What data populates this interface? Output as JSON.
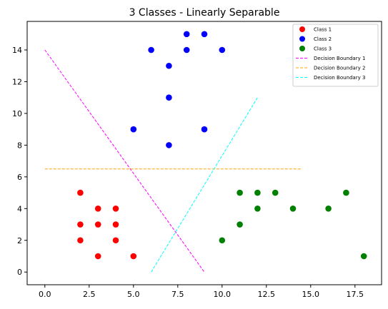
{
  "chart_data": {
    "type": "scatter",
    "title": "3 Classes - Linearly Separable",
    "xlabel": "",
    "ylabel": "",
    "xlim": [
      -1,
      19
    ],
    "ylim": [
      -0.8,
      15.8
    ],
    "xticks": [
      0.0,
      2.5,
      5.0,
      7.5,
      10.0,
      12.5,
      15.0,
      17.5
    ],
    "xtick_labels": [
      "0.0",
      "2.5",
      "5.0",
      "7.5",
      "10.0",
      "12.5",
      "15.0",
      "17.5"
    ],
    "yticks": [
      0,
      2,
      4,
      6,
      8,
      10,
      12,
      14
    ],
    "ytick_labels": [
      "0",
      "2",
      "4",
      "6",
      "8",
      "10",
      "12",
      "14"
    ],
    "grid": false,
    "legend_placement": "top-right",
    "series": [
      {
        "name": "Class 1",
        "kind": "points",
        "color": "#ff0000",
        "x": [
          2,
          2,
          2,
          3,
          3,
          3,
          4,
          4,
          4,
          5
        ],
        "y": [
          5,
          3,
          2,
          4,
          3,
          1,
          4,
          3,
          2,
          1
        ]
      },
      {
        "name": "Class 2",
        "kind": "points",
        "color": "#0000ff",
        "x": [
          5,
          6,
          7,
          7,
          7,
          8,
          8,
          9,
          9,
          10
        ],
        "y": [
          9,
          14,
          13,
          11,
          8,
          15,
          14,
          15,
          9,
          14
        ]
      },
      {
        "name": "Class 3",
        "kind": "points",
        "color": "#008000",
        "x": [
          10,
          11,
          11,
          12,
          12,
          13,
          14,
          16,
          17,
          18
        ],
        "y": [
          2,
          5,
          3,
          5,
          4,
          5,
          4,
          4,
          5,
          1
        ]
      },
      {
        "name": "Decision Boundary 1",
        "kind": "line",
        "color": "#ff00ff",
        "x": [
          0,
          9
        ],
        "y": [
          14,
          0
        ]
      },
      {
        "name": "Decision Boundary 2",
        "kind": "line",
        "color": "#ffa500",
        "x": [
          0,
          14.5
        ],
        "y": [
          6.5,
          6.5
        ]
      },
      {
        "name": "Decision Boundary 3",
        "kind": "line",
        "color": "#00ffff",
        "x": [
          6,
          12
        ],
        "y": [
          0,
          11
        ]
      }
    ]
  }
}
